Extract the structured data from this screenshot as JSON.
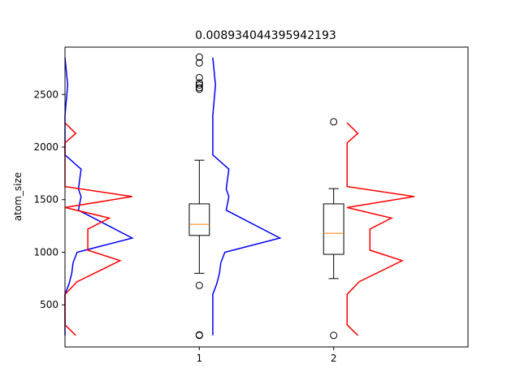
{
  "chart_data": {
    "type": "box",
    "title": "0.008934044395942193",
    "xlabel": "",
    "ylabel": "atom_size",
    "xlim": [
      0,
      3
    ],
    "ylim": [
      100,
      2950
    ],
    "x_ticks": [
      1,
      2
    ],
    "y_ticks": [
      500,
      1000,
      1500,
      2000,
      2500
    ],
    "grid": false,
    "boxes": [
      {
        "name": "1",
        "position": 1,
        "q1": 1160,
        "median": 1265,
        "q3": 1460,
        "whisker_low": 800,
        "whisker_high": 1875,
        "outliers": [
          210,
          215,
          685,
          2550,
          2565,
          2590,
          2610,
          2660,
          2800,
          2855
        ]
      },
      {
        "name": "2",
        "position": 2,
        "q1": 980,
        "median": 1180,
        "q3": 1460,
        "whisker_low": 750,
        "whisker_high": 1605,
        "outliers": [
          210,
          2240
        ]
      }
    ],
    "distributions": [
      {
        "color": "#0000ff",
        "base_x": 0.0,
        "points": [
          [
            0.0,
            210
          ],
          [
            0.0,
            420
          ],
          [
            0.0,
            600
          ],
          [
            0.03,
            700
          ],
          [
            0.05,
            800
          ],
          [
            0.06,
            900
          ],
          [
            0.09,
            1000
          ],
          [
            0.5,
            1135
          ],
          [
            0.1,
            1400
          ],
          [
            0.12,
            1530
          ],
          [
            0.1,
            1600
          ],
          [
            0.12,
            1790
          ],
          [
            0.0,
            1925
          ],
          [
            0.0,
            2000
          ],
          [
            0.0,
            2300
          ],
          [
            0.02,
            2590
          ],
          [
            0.0,
            2850
          ]
        ]
      },
      {
        "color": "#ff0000",
        "base_x": 0.0,
        "points": [
          [
            0.08,
            210
          ],
          [
            0.0,
            310
          ],
          [
            0.0,
            600
          ],
          [
            0.09,
            720
          ],
          [
            0.41,
            920
          ],
          [
            0.17,
            1020
          ],
          [
            0.17,
            1220
          ],
          [
            0.33,
            1325
          ],
          [
            0.0,
            1425
          ],
          [
            0.5,
            1530
          ],
          [
            0.0,
            1625
          ],
          [
            0.0,
            2040
          ],
          [
            0.08,
            2130
          ],
          [
            0.0,
            2230
          ]
        ]
      },
      {
        "color": "#0000ff",
        "base_x": 1.1,
        "points": [
          [
            1.1,
            210
          ],
          [
            1.1,
            420
          ],
          [
            1.1,
            600
          ],
          [
            1.13,
            700
          ],
          [
            1.15,
            800
          ],
          [
            1.16,
            900
          ],
          [
            1.19,
            1000
          ],
          [
            1.6,
            1135
          ],
          [
            1.2,
            1400
          ],
          [
            1.22,
            1530
          ],
          [
            1.2,
            1600
          ],
          [
            1.22,
            1790
          ],
          [
            1.1,
            1925
          ],
          [
            1.1,
            2000
          ],
          [
            1.1,
            2300
          ],
          [
            1.12,
            2590
          ],
          [
            1.1,
            2850
          ]
        ]
      },
      {
        "color": "#ff0000",
        "base_x": 2.1,
        "points": [
          [
            2.18,
            210
          ],
          [
            2.1,
            310
          ],
          [
            2.1,
            600
          ],
          [
            2.19,
            720
          ],
          [
            2.51,
            920
          ],
          [
            2.27,
            1020
          ],
          [
            2.27,
            1220
          ],
          [
            2.43,
            1325
          ],
          [
            2.1,
            1425
          ],
          [
            2.6,
            1530
          ],
          [
            2.1,
            1625
          ],
          [
            2.1,
            2040
          ],
          [
            2.18,
            2130
          ],
          [
            2.1,
            2230
          ]
        ]
      }
    ]
  }
}
